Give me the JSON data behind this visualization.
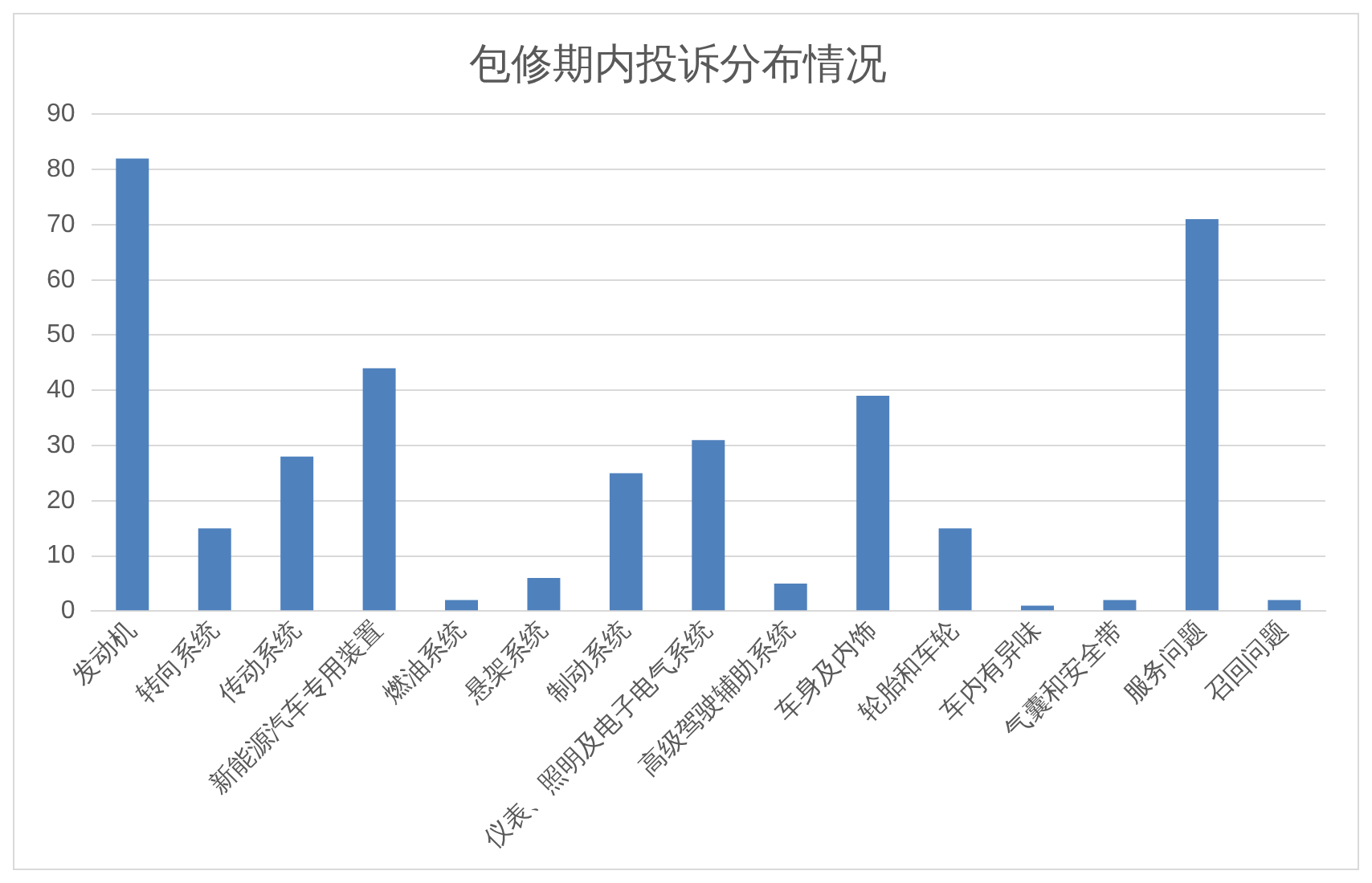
{
  "chart_data": {
    "type": "bar",
    "title": "包修期内投诉分布情况",
    "categories": [
      "发动机",
      "转向系统",
      "传动系统",
      "新能源汽车专用装置",
      "燃油系统",
      "悬架系统",
      "制动系统",
      "仪表、照明及电子电气系统",
      "高级驾驶辅助系统",
      "车身及内饰",
      "轮胎和车轮",
      "车内有异味",
      "气囊和安全带",
      "服务问题",
      "召回问题"
    ],
    "values": [
      82,
      15,
      28,
      44,
      2,
      6,
      25,
      31,
      5,
      39,
      15,
      1,
      2,
      71,
      2
    ],
    "color": "#4f81bd",
    "ylim": [
      0,
      90
    ],
    "yticks": [
      0,
      10,
      20,
      30,
      40,
      50,
      60,
      70,
      80,
      90
    ],
    "grid": "y",
    "legend": false
  }
}
